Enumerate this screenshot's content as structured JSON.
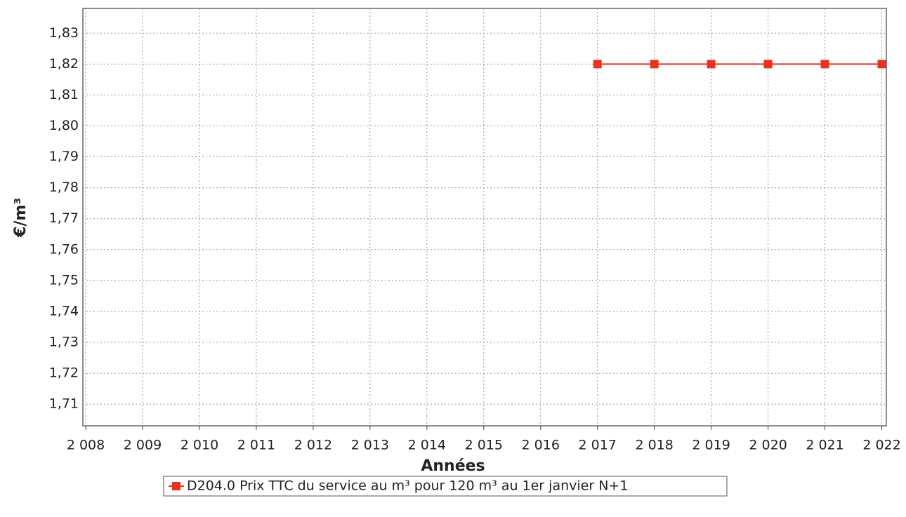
{
  "chart_data": {
    "type": "line",
    "xlabel": "Années",
    "ylabel": "€/m³",
    "xlim": [
      2007.95,
      2022.08
    ],
    "xticks": [
      {
        "value": 2008,
        "label": "2 008"
      },
      {
        "value": 2009,
        "label": "2 009"
      },
      {
        "value": 2010,
        "label": "2 010"
      },
      {
        "value": 2011,
        "label": "2 011"
      },
      {
        "value": 2012,
        "label": "2 012"
      },
      {
        "value": 2013,
        "label": "2 013"
      },
      {
        "value": 2014,
        "label": "2 014"
      },
      {
        "value": 2015,
        "label": "2 015"
      },
      {
        "value": 2016,
        "label": "2 016"
      },
      {
        "value": 2017,
        "label": "2 017"
      },
      {
        "value": 2018,
        "label": "2 018"
      },
      {
        "value": 2019,
        "label": "2 019"
      },
      {
        "value": 2020,
        "label": "2 020"
      },
      {
        "value": 2021,
        "label": "2 021"
      },
      {
        "value": 2022,
        "label": "2 022"
      }
    ],
    "ylim": [
      1.703,
      1.838
    ],
    "yticks": [
      {
        "value": 1.71,
        "label": "1,71"
      },
      {
        "value": 1.72,
        "label": "1,72"
      },
      {
        "value": 1.73,
        "label": "1,73"
      },
      {
        "value": 1.74,
        "label": "1,74"
      },
      {
        "value": 1.75,
        "label": "1,75"
      },
      {
        "value": 1.76,
        "label": "1,76"
      },
      {
        "value": 1.77,
        "label": "1,77"
      },
      {
        "value": 1.78,
        "label": "1,78"
      },
      {
        "value": 1.79,
        "label": "1,79"
      },
      {
        "value": 1.8,
        "label": "1,80"
      },
      {
        "value": 1.81,
        "label": "1,81"
      },
      {
        "value": 1.82,
        "label": "1,82"
      },
      {
        "value": 1.83,
        "label": "1,83"
      }
    ],
    "grid": true,
    "legend": "bottom",
    "series": [
      {
        "name": "D204.0 Prix TTC du service au m³ pour 120 m³ au 1er janvier N+1",
        "color": "#e8321e",
        "x": [
          2017,
          2018,
          2019,
          2020,
          2021,
          2022
        ],
        "values": [
          1.82,
          1.82,
          1.82,
          1.82,
          1.82,
          1.82
        ]
      }
    ]
  }
}
